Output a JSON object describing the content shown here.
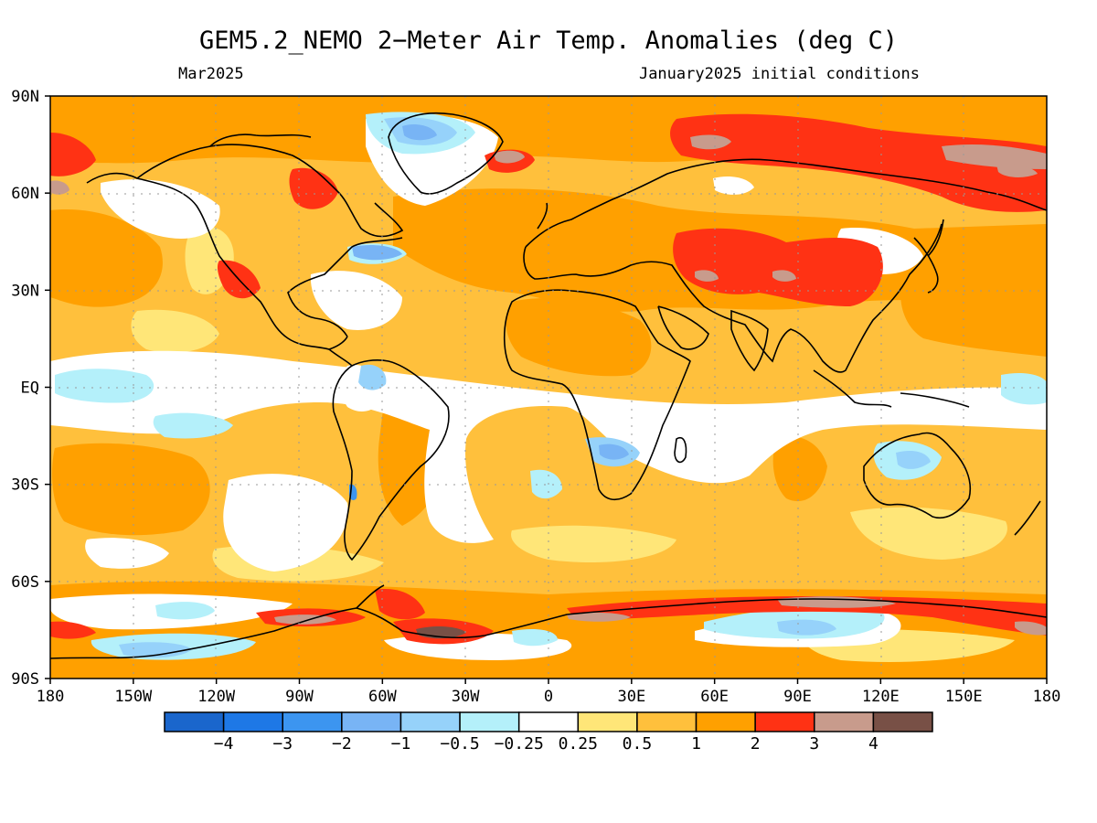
{
  "title": "GEM5.2_NEMO 2-Meter Air Temp. Anomalies (deg C)",
  "subtitle_left": "Mar2025",
  "subtitle_right": "January2025 initial conditions",
  "lat_labels": [
    "90N",
    "60N",
    "30N",
    "EQ",
    "30S",
    "60S",
    "90S"
  ],
  "lon_labels": [
    "180",
    "150W",
    "120W",
    "90W",
    "60W",
    "30W",
    "0",
    "30E",
    "60E",
    "90E",
    "120E",
    "150E",
    "180"
  ],
  "colorbar": {
    "colors": [
      "#1a66cc",
      "#1e78e6",
      "#3c95f0",
      "#78b4f5",
      "#96d2fa",
      "#b4f0fa",
      "#ffffff",
      "#ffe678",
      "#ffc03c",
      "#ffa000",
      "#ff3214",
      "#c89b8c",
      "#785046"
    ],
    "labels": [
      "-4",
      "-3",
      "-2",
      "-1",
      "-0.5",
      "-0.25",
      "0.25",
      "0.5",
      "1",
      "2",
      "3",
      "4"
    ]
  }
}
